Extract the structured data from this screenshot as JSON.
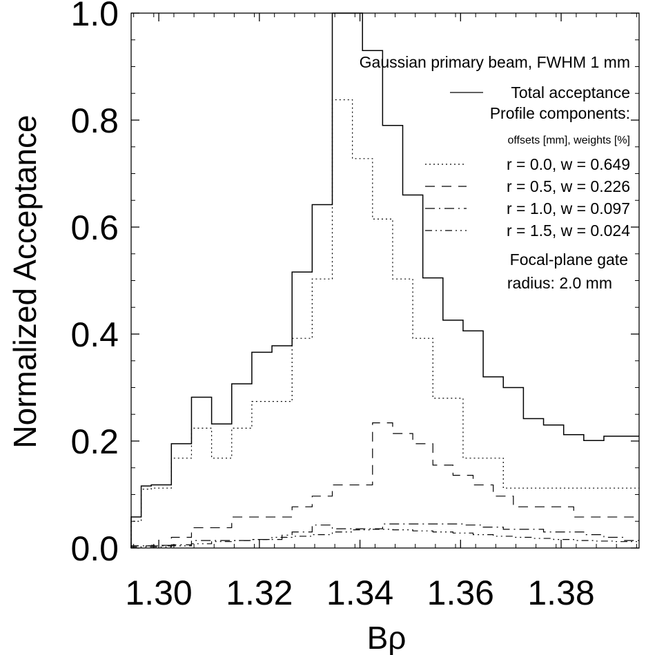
{
  "chart_data": {
    "type": "line",
    "step": true,
    "xlabel": "Bρ",
    "ylabel": "Normalized Acceptance",
    "xlim": [
      1.2945,
      1.3955
    ],
    "ylim": [
      0.0,
      1.0
    ],
    "xticks": [
      "1.30",
      "1.32",
      "1.34",
      "1.36",
      "1.38"
    ],
    "yticks": [
      "0.0",
      "0.2",
      "0.4",
      "0.6",
      "0.8",
      "1.0"
    ],
    "annotations": {
      "title": "Gaussian primary beam, FWHM 1 mm",
      "components_header": "Profile components:",
      "units_note": "offsets [mm], weights [%]",
      "gate_line1": "Focal-plane gate",
      "gate_line2": "radius: 2.0 mm"
    },
    "x_edges": [
      1.2945,
      1.2965,
      1.2985,
      1.3005,
      1.3025,
      1.3045,
      1.3065,
      1.3085,
      1.3105,
      1.3125,
      1.3145,
      1.3165,
      1.3185,
      1.3205,
      1.3225,
      1.3245,
      1.3265,
      1.3285,
      1.3305,
      1.3325,
      1.3345,
      1.3365,
      1.3385,
      1.3405,
      1.3425,
      1.3445,
      1.3465,
      1.3485,
      1.3505,
      1.3525,
      1.3545,
      1.3565,
      1.3585,
      1.3605,
      1.3625,
      1.3645,
      1.3665,
      1.3685,
      1.3705,
      1.3725,
      1.3745,
      1.3765,
      1.3785,
      1.3805,
      1.3825,
      1.3845,
      1.3865,
      1.3885,
      1.3905,
      1.3925,
      1.3945,
      1.3955
    ],
    "series": [
      {
        "name": "Total acceptance",
        "style": "solid",
        "values": [
          0.058,
          0.116,
          0.118,
          0.118,
          0.195,
          0.195,
          0.282,
          0.282,
          0.232,
          0.232,
          0.307,
          0.307,
          0.366,
          0.366,
          0.378,
          0.378,
          0.516,
          0.516,
          0.642,
          0.642,
          1.0,
          1.0,
          1.0,
          0.93,
          0.93,
          0.79,
          0.79,
          0.66,
          0.66,
          0.505,
          0.505,
          0.426,
          0.426,
          0.406,
          0.406,
          0.32,
          0.32,
          0.3,
          0.3,
          0.242,
          0.242,
          0.23,
          0.23,
          0.212,
          0.212,
          0.201,
          0.201,
          0.209,
          0.209,
          0.209,
          0.209
        ]
      },
      {
        "name": "r = 0.0, w = 0.649",
        "style": "dotted",
        "values": [
          0.05,
          0.11,
          0.112,
          0.112,
          0.168,
          0.168,
          0.224,
          0.224,
          0.168,
          0.168,
          0.224,
          0.224,
          0.274,
          0.274,
          0.274,
          0.274,
          0.392,
          0.392,
          0.503,
          0.503,
          0.838,
          0.838,
          0.728,
          0.728,
          0.615,
          0.615,
          0.503,
          0.503,
          0.392,
          0.392,
          0.28,
          0.28,
          0.28,
          0.168,
          0.168,
          0.168,
          0.168,
          0.112,
          0.112,
          0.112,
          0.112,
          0.112,
          0.112,
          0.112,
          0.112,
          0.112,
          0.112,
          0.112,
          0.112,
          0.112,
          0.112
        ]
      },
      {
        "name": "r = 0.5, w = 0.226",
        "style": "dashed",
        "values": [
          0.004,
          0.004,
          0.005,
          0.005,
          0.02,
          0.02,
          0.038,
          0.038,
          0.038,
          0.038,
          0.058,
          0.058,
          0.058,
          0.058,
          0.058,
          0.058,
          0.077,
          0.077,
          0.097,
          0.097,
          0.118,
          0.118,
          0.118,
          0.118,
          0.234,
          0.234,
          0.214,
          0.214,
          0.195,
          0.195,
          0.155,
          0.155,
          0.136,
          0.136,
          0.118,
          0.118,
          0.097,
          0.097,
          0.077,
          0.077,
          0.077,
          0.077,
          0.077,
          0.077,
          0.058,
          0.058,
          0.058,
          0.058,
          0.058,
          0.058,
          0.058
        ]
      },
      {
        "name": "r = 1.0, w = 0.097",
        "style": "dashdot",
        "values": [
          0.004,
          0.004,
          0.004,
          0.004,
          0.006,
          0.006,
          0.014,
          0.014,
          0.014,
          0.014,
          0.014,
          0.014,
          0.016,
          0.016,
          0.016,
          0.024,
          0.03,
          0.03,
          0.043,
          0.043,
          0.036,
          0.036,
          0.036,
          0.036,
          0.036,
          0.045,
          0.045,
          0.045,
          0.045,
          0.045,
          0.045,
          0.045,
          0.045,
          0.043,
          0.043,
          0.039,
          0.039,
          0.035,
          0.035,
          0.035,
          0.035,
          0.03,
          0.03,
          0.03,
          0.03,
          0.025,
          0.025,
          0.02,
          0.02,
          0.014,
          0.014
        ]
      },
      {
        "name": "r = 1.5, w = 0.024",
        "style": "dashdotdot",
        "values": [
          0.002,
          0.002,
          0.002,
          0.002,
          0.004,
          0.004,
          0.008,
          0.008,
          0.012,
          0.012,
          0.014,
          0.014,
          0.016,
          0.016,
          0.02,
          0.02,
          0.022,
          0.022,
          0.025,
          0.025,
          0.03,
          0.03,
          0.034,
          0.034,
          0.035,
          0.035,
          0.034,
          0.034,
          0.032,
          0.032,
          0.03,
          0.03,
          0.028,
          0.028,
          0.025,
          0.025,
          0.022,
          0.022,
          0.02,
          0.02,
          0.018,
          0.018,
          0.016,
          0.016,
          0.014,
          0.014,
          0.013,
          0.013,
          0.012,
          0.012,
          0.012
        ]
      }
    ]
  }
}
